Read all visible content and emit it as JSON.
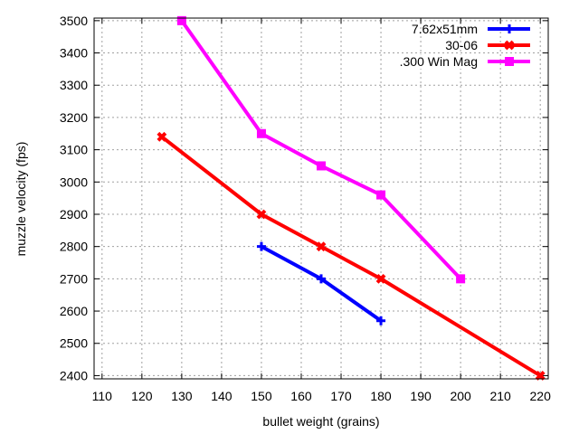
{
  "chart_data": {
    "type": "line",
    "title": "",
    "xlabel": "bullet weight (grains)",
    "ylabel": "muzzle velocity (fps)",
    "xlim": [
      108,
      222
    ],
    "ylim": [
      2390,
      3508
    ],
    "xticks": [
      110,
      120,
      130,
      140,
      150,
      160,
      170,
      180,
      190,
      200,
      210,
      220
    ],
    "yticks": [
      2400,
      2500,
      2600,
      2700,
      2800,
      2900,
      3000,
      3100,
      3200,
      3300,
      3400,
      3500
    ],
    "grid": true,
    "legend_position": "top-right",
    "series": [
      {
        "name": "7.62x51mm",
        "color": "#0000ff",
        "marker": "plus",
        "x": [
          150,
          165,
          180
        ],
        "y": [
          2800,
          2700,
          2570
        ]
      },
      {
        "name": "30-06",
        "color": "#ff0000",
        "marker": "cross",
        "x": [
          125,
          150,
          165,
          180,
          220
        ],
        "y": [
          3140,
          2900,
          2800,
          2700,
          2400
        ]
      },
      {
        "name": ".300 Win Mag",
        "color": "#ff00ff",
        "marker": "square",
        "x": [
          130,
          150,
          165,
          180,
          200
        ],
        "y": [
          3500,
          3150,
          3050,
          2960,
          2700
        ]
      }
    ]
  }
}
